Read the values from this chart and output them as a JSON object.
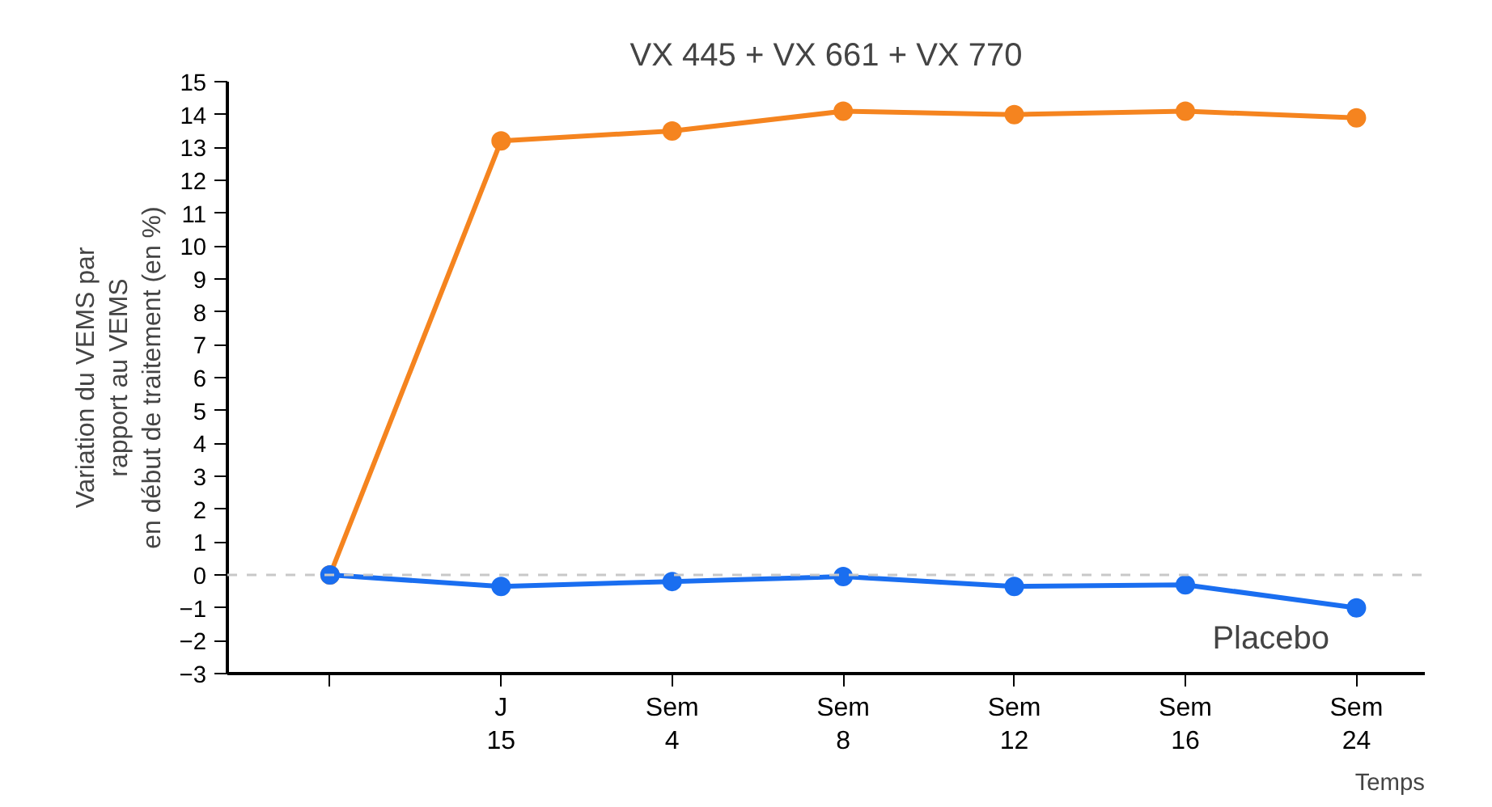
{
  "chart_data": {
    "type": "line",
    "xlabel": "Temps",
    "ylabel": "Variation du VEMS par\nrapport au VEMS\nen début de traitement (en %)",
    "categories": [
      null,
      "J\n15",
      "Sem\n4",
      "Sem\n8",
      "Sem\n12",
      "Sem\n16",
      "Sem\n24"
    ],
    "series": [
      {
        "name": "VX 445 + VX 661 + VX 770",
        "color": "#f5841f",
        "values": [
          0,
          13.2,
          13.5,
          14.1,
          14.0,
          14.1,
          13.9
        ]
      },
      {
        "name": "Placebo",
        "color": "#1a6ef0",
        "values": [
          0,
          -0.35,
          -0.2,
          -0.05,
          -0.35,
          -0.3,
          -1.0
        ]
      }
    ],
    "ylim": [
      -3,
      15
    ],
    "yticks": [
      -3,
      -2,
      -1,
      0,
      1,
      2,
      3,
      4,
      5,
      6,
      7,
      8,
      9,
      10,
      11,
      12,
      13,
      14,
      15
    ],
    "ref_lines": [
      {
        "axis": "y",
        "value": 0,
        "label": null,
        "color": "#c8c8c8",
        "line_style": "dashed"
      }
    ],
    "grid": false,
    "marker": "circle",
    "line_style": "solid"
  }
}
